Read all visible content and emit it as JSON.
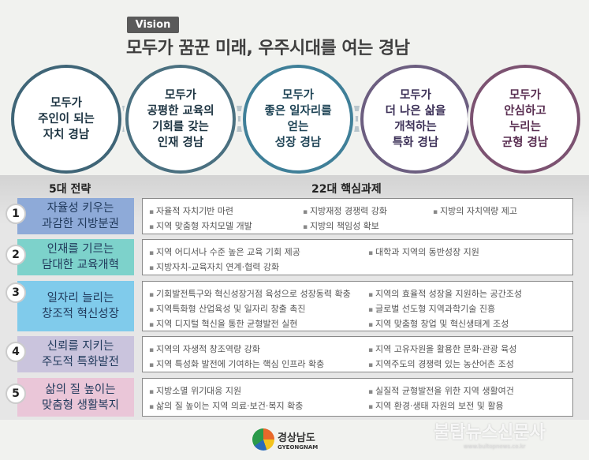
{
  "vision_label": "Vision",
  "title": "모두가 꿈꾼 미래, 우주시대를 여는 경남",
  "goals": [
    "모두가\n주인이 되는\n자치 경남",
    "모두가\n공평한 교육의\n기회를 갖는\n인재 경남",
    "모두가\n좋은 일자리를\n얻는\n성장 경남",
    "모두가\n더 나은 삶을\n개척하는\n특화 경남",
    "모두가\n안심하고\n누리는\n균형 경남"
  ],
  "headers": {
    "strategies": "5대 전략",
    "tasks": "22대 핵심과제"
  },
  "strategies": [
    {
      "num": "1",
      "label": "자율성 키우는\n과감한 지방분권",
      "color": "#8eaad8",
      "tasks": [
        "자율적 자치기반 마련",
        "지방재정 경쟁력 강화",
        "지방의 자치역량 제고",
        "지역 맞춤형 자치모델 개발",
        "지방의 책임성 확보"
      ]
    },
    {
      "num": "2",
      "label": "인재를 기르는\n담대한 교육개혁",
      "color": "#7dd2cb",
      "tasks": [
        "지역 어디서나 수준 높은 교육 기회 제공",
        "대학과 지역의 동반성장 지원",
        "지방자치-교육자치 연계·협력 강화"
      ]
    },
    {
      "num": "3",
      "label": "일자리 늘리는\n창조적 혁신성장",
      "color": "#80cbeb",
      "tasks": [
        "기회발전특구와 혁신성장거점 육성으로 성장동력 확충",
        "지역의 효율적 성장을 지원하는 공간조성",
        "지역특화형 산업육성 및 일자리 창출 촉진",
        "글로벌 선도형 지역과학기술 진흥",
        "지역 디지털 혁신을 통한 균형발전 실현",
        "지역 맞춤형 창업 및 혁신생태계 조성"
      ]
    },
    {
      "num": "4",
      "label": "신뢰를 지키는\n주도적 특화발전",
      "color": "#cac4dd",
      "tasks": [
        "지역의 자생적 창조역량 강화",
        "지역 고유자원을 활용한 문화·관광 육성",
        "지역 특성화 발전에 기여하는 핵심 인프라 확충",
        "지역주도의 경쟁력 있는 농산어촌 조성"
      ]
    },
    {
      "num": "5",
      "label": "삶의 질 높이는\n맞춤형 생활복지",
      "color": "#eac6d8",
      "tasks": [
        "지방소멸 위기대응 지원",
        "실질적 균형발전을 위한 지역 생활여건",
        "삶의 질 높이는 지역 의료·보건·복지 확충",
        "지역 환경·생태 자원의 보전 및 활용"
      ]
    }
  ],
  "logo": {
    "name": "경상남도",
    "name_en": "GYEONGNAM"
  },
  "watermark": {
    "name": "불탑뉴스신문사",
    "url": "www.bultopnews.co.kr"
  }
}
